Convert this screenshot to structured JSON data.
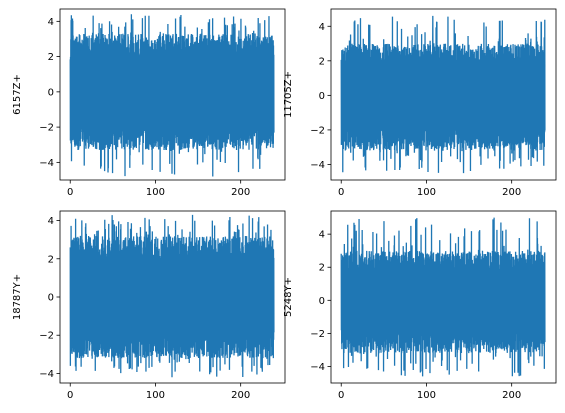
{
  "chart_data": [
    {
      "type": "line",
      "ylabel": "6157Z+",
      "xlim": [
        -12,
        252
      ],
      "ylim": [
        -5.0,
        4.7
      ],
      "xticks": [
        0,
        100,
        200
      ],
      "yticks": [
        -4,
        -2,
        0,
        2,
        4
      ],
      "n_points": 240,
      "color": "#1f77b4",
      "series": [
        {
          "x_range": [
            0,
            239
          ],
          "y_min": -4.8,
          "y_max": 4.4,
          "typical_upper": 3.3,
          "typical_lower": -3.3
        }
      ]
    },
    {
      "type": "line",
      "ylabel": "11705Z+",
      "xlim": [
        -12,
        252
      ],
      "ylim": [
        -4.9,
        5.0
      ],
      "xticks": [
        0,
        100,
        200
      ],
      "yticks": [
        -4,
        -2,
        0,
        2,
        4
      ],
      "n_points": 240,
      "color": "#1f77b4",
      "series": [
        {
          "x_range": [
            0,
            239
          ],
          "y_min": -4.5,
          "y_max": 4.6,
          "typical_upper": 3.0,
          "typical_lower": -3.2
        }
      ]
    },
    {
      "type": "line",
      "ylabel": "18787Y+",
      "xlim": [
        -12,
        252
      ],
      "ylim": [
        -4.5,
        4.5
      ],
      "xticks": [
        0,
        100,
        200
      ],
      "yticks": [
        -4,
        -2,
        0,
        2,
        4
      ],
      "n_points": 240,
      "color": "#1f77b4",
      "series": [
        {
          "x_range": [
            0,
            239
          ],
          "y_min": -4.2,
          "y_max": 4.3,
          "typical_upper": 3.2,
          "typical_lower": -3.2
        }
      ]
    },
    {
      "type": "line",
      "ylabel": "5248Y+",
      "xlim": [
        -12,
        252
      ],
      "ylim": [
        -5.0,
        5.4
      ],
      "xticks": [
        0,
        100,
        200
      ],
      "yticks": [
        -4,
        -2,
        0,
        2,
        4
      ],
      "n_points": 240,
      "color": "#1f77b4",
      "series": [
        {
          "x_range": [
            0,
            239
          ],
          "y_min": -4.6,
          "y_max": 5.0,
          "typical_upper": 3.0,
          "typical_lower": -3.2
        }
      ]
    }
  ]
}
